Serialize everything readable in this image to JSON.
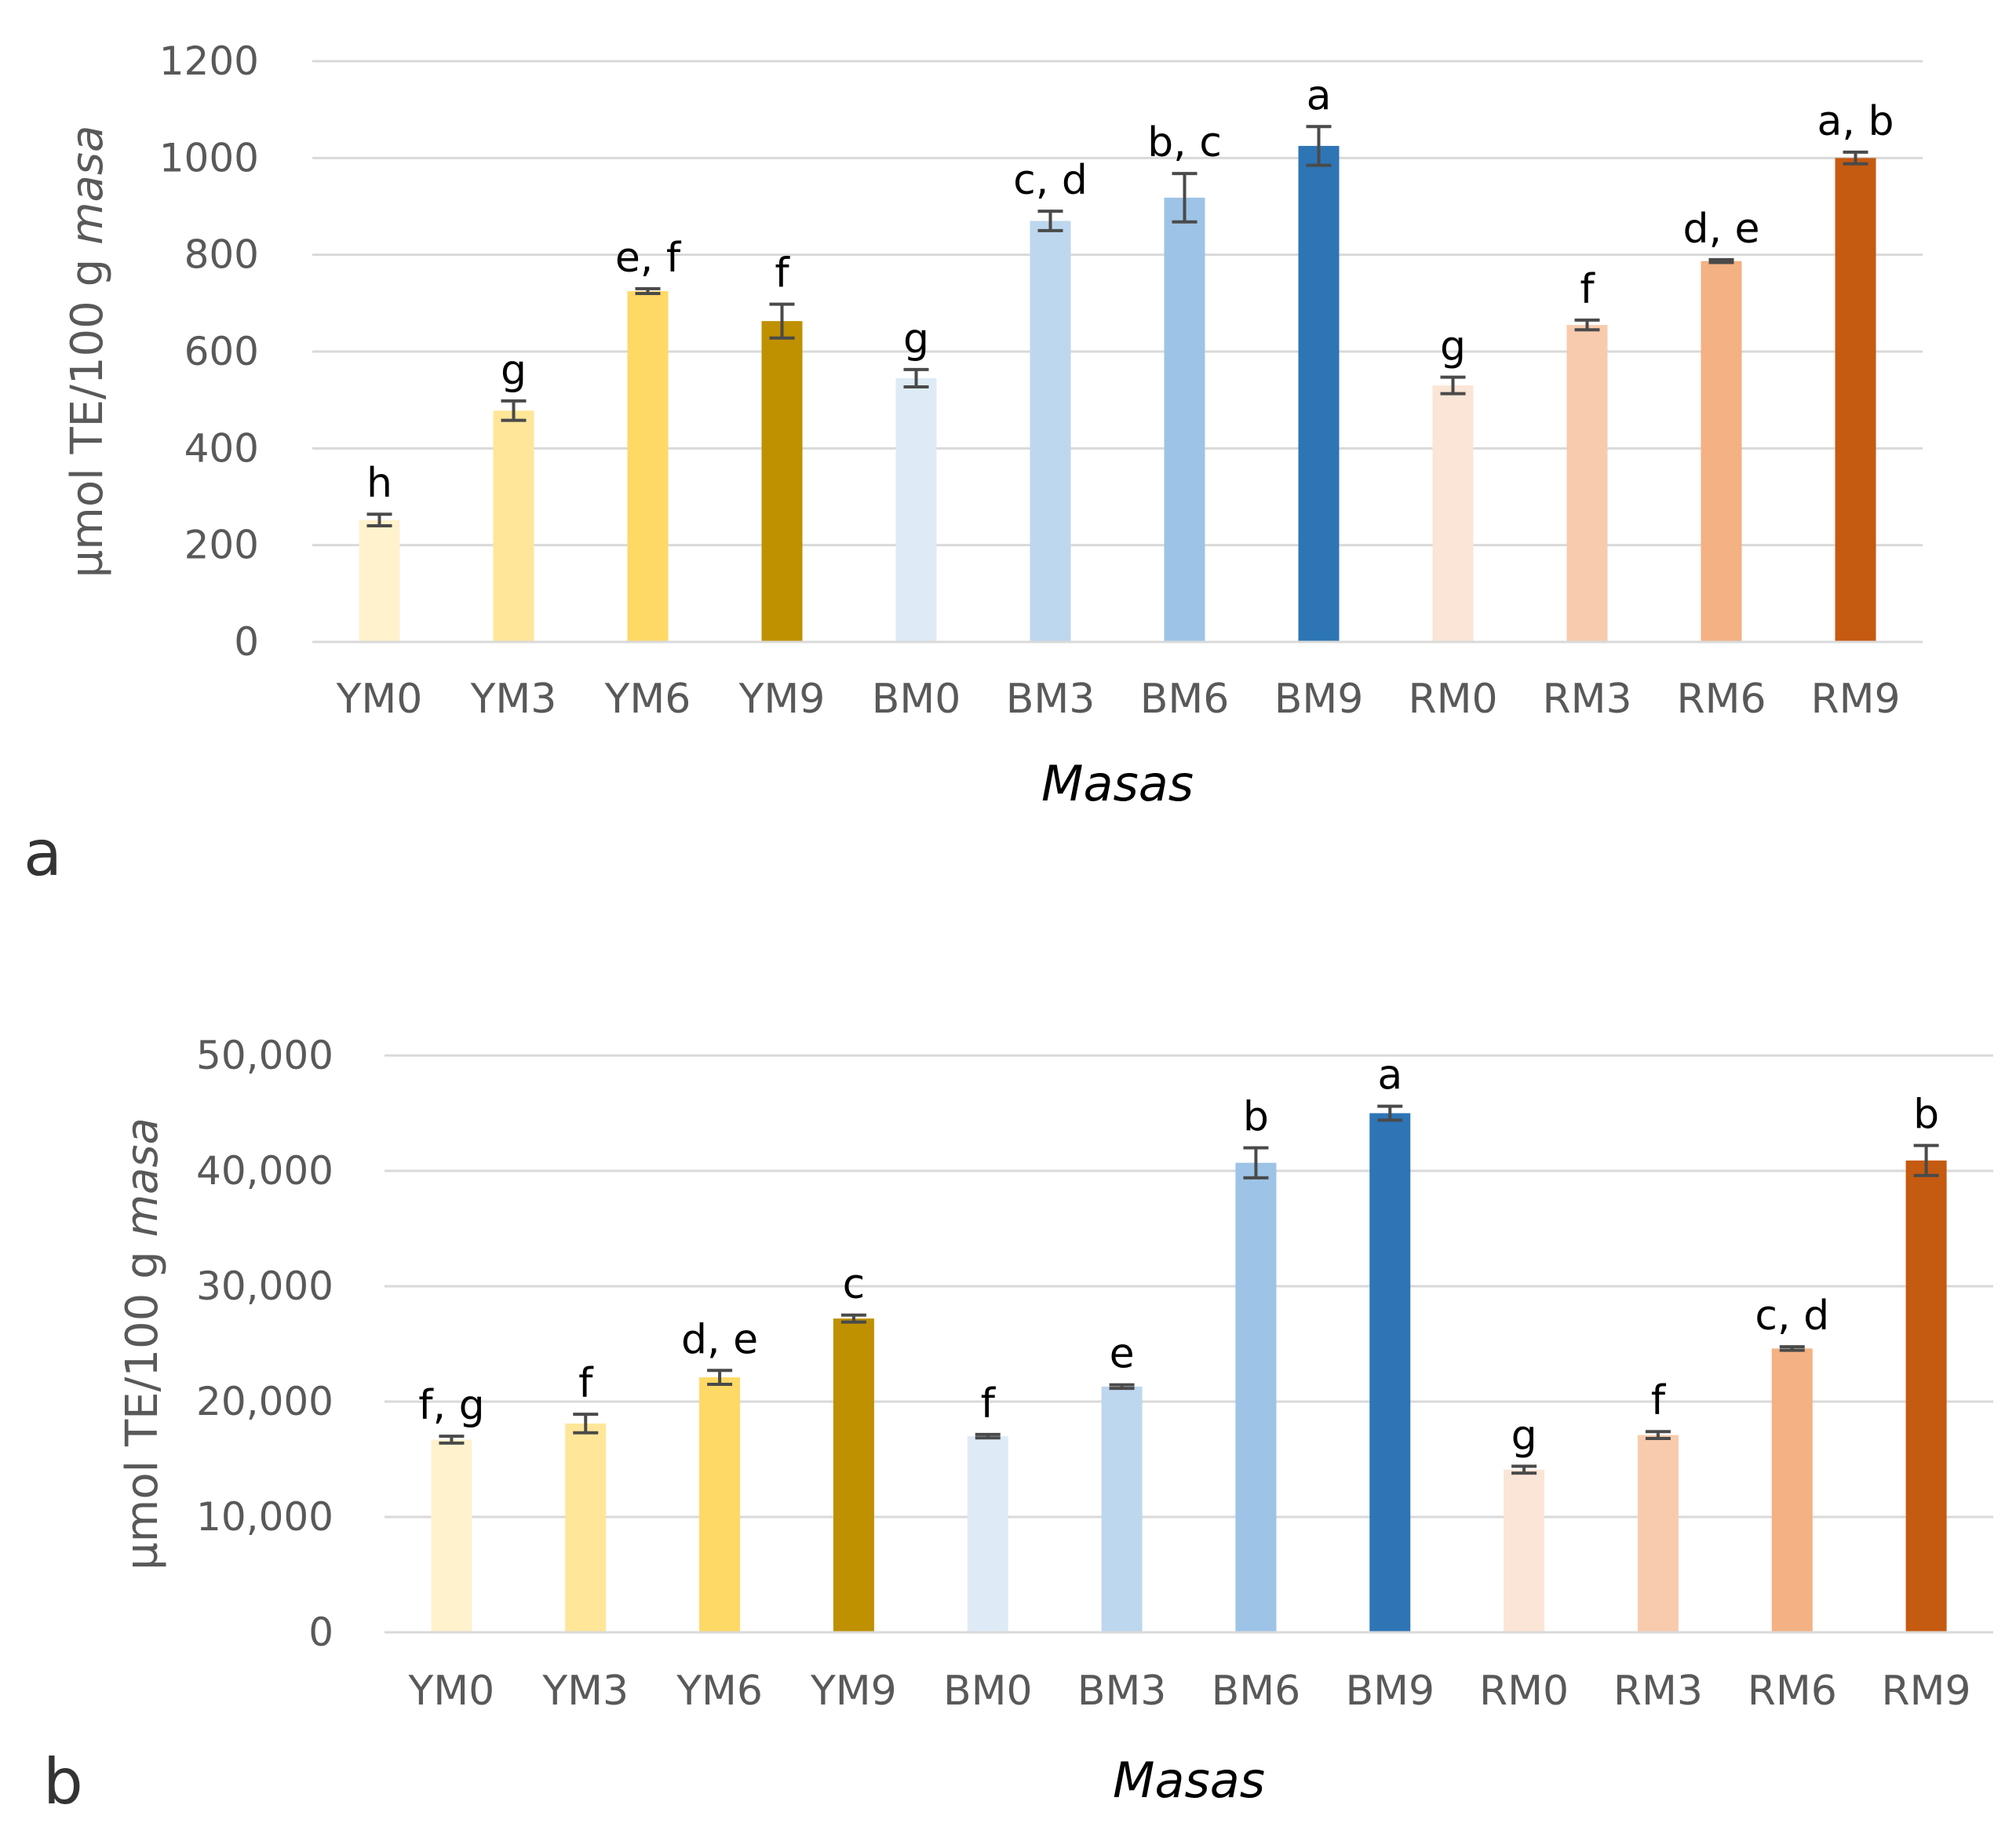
{
  "chart_data": [
    {
      "type": "bar",
      "panel_label": "a",
      "title": "",
      "xlabel": "Masas",
      "ylabel_prefix": "µmol TE/100 g ",
      "ylabel_italic": "masa",
      "ylim": [
        0,
        1200
      ],
      "yticks": [
        0,
        200,
        400,
        600,
        800,
        1000,
        1200
      ],
      "ytick_labels": [
        "0",
        "200",
        "400",
        "600",
        "800",
        "1000",
        "1200"
      ],
      "grid": true,
      "categories": [
        "YM0",
        "YM3",
        "YM6",
        "YM9",
        "BM0",
        "BM3",
        "BM6",
        "BM9",
        "RM0",
        "RM3",
        "RM6",
        "RM9"
      ],
      "values": [
        252,
        478,
        725,
        663,
        545,
        870,
        918,
        1025,
        530,
        655,
        787,
        1000
      ],
      "errors": [
        12,
        20,
        5,
        35,
        18,
        20,
        50,
        40,
        17,
        10,
        3,
        12
      ],
      "significance": [
        "h",
        "g",
        "e, f",
        "f",
        "g",
        "c, d",
        "b, c",
        "a",
        "g",
        "f",
        "d, e",
        "a, b"
      ],
      "colors": [
        "#fff2cc",
        "#ffe699",
        "#ffd966",
        "#bf9000",
        "#deebf7",
        "#bdd7ee",
        "#9dc3e6",
        "#2e75b6",
        "#fbe5d6",
        "#f8cbad",
        "#f4b183",
        "#c55a11"
      ]
    },
    {
      "type": "bar",
      "panel_label": "b",
      "title": "",
      "xlabel": "Masas",
      "ylabel_prefix": "µmol TE/100 g ",
      "ylabel_italic": "masa",
      "ylim": [
        0,
        50000
      ],
      "yticks": [
        0,
        10000,
        20000,
        30000,
        40000,
        50000
      ],
      "ytick_labels": [
        "0",
        "10,000",
        "20,000",
        "30,000",
        "40,000",
        "50,000"
      ],
      "grid": true,
      "categories": [
        "YM0",
        "YM3",
        "YM6",
        "YM9",
        "BM0",
        "BM3",
        "BM6",
        "BM9",
        "RM0",
        "RM3",
        "RM6",
        "RM9"
      ],
      "values": [
        16700,
        18100,
        22100,
        27200,
        17000,
        21300,
        40700,
        45000,
        14100,
        17100,
        24600,
        40900
      ],
      "errors": [
        300,
        800,
        600,
        300,
        150,
        150,
        1300,
        600,
        300,
        300,
        150,
        1300
      ],
      "significance": [
        "f, g",
        "f",
        "d, e",
        "c",
        "f",
        "e",
        "b",
        "a",
        "g",
        "f",
        "c, d",
        "b"
      ],
      "colors": [
        "#fff2cc",
        "#ffe699",
        "#ffd966",
        "#bf9000",
        "#deebf7",
        "#bdd7ee",
        "#9dc3e6",
        "#2e75b6",
        "#fbe5d6",
        "#f8cbad",
        "#f4b183",
        "#c55a11"
      ]
    }
  ]
}
